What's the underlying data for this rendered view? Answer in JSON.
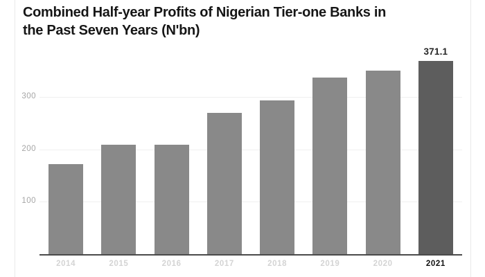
{
  "title": {
    "line1": "Combined Half-year Profits of Nigerian Tier-one Banks in",
    "line2": "the Past Seven Years (N'bn)"
  },
  "chart_data": {
    "type": "bar",
    "title": "Combined Half-year Profits of Nigerian Tier-one Banks in the Past Seven Years (N'bn)",
    "categories": [
      "2014",
      "2015",
      "2016",
      "2017",
      "2018",
      "2019",
      "2020",
      "2021"
    ],
    "values": [
      173,
      210,
      210,
      271,
      295,
      339,
      352,
      371.1
    ],
    "annotation": {
      "category": "2021",
      "text": "371.1"
    },
    "highlight_category": "2021",
    "y_ticks": [
      100,
      200,
      300
    ],
    "ylim": [
      0,
      400
    ],
    "xlabel": "",
    "ylabel": "",
    "grid": true,
    "legend": false,
    "legend_position": "none",
    "bar_color": "#898989",
    "highlight_bar_color": "#5d5d5d"
  },
  "colors": {
    "background": "#ffffff",
    "card_border": "#e9e9e9",
    "title_text": "#161616",
    "gridline": "#efefef",
    "axis_line": "#4a4a4a",
    "y_tick_label": "#a6a6a6",
    "x_tick_label": "#d4d4d4",
    "x_tick_label_highlight": "#101010",
    "value_label": "#262626"
  }
}
